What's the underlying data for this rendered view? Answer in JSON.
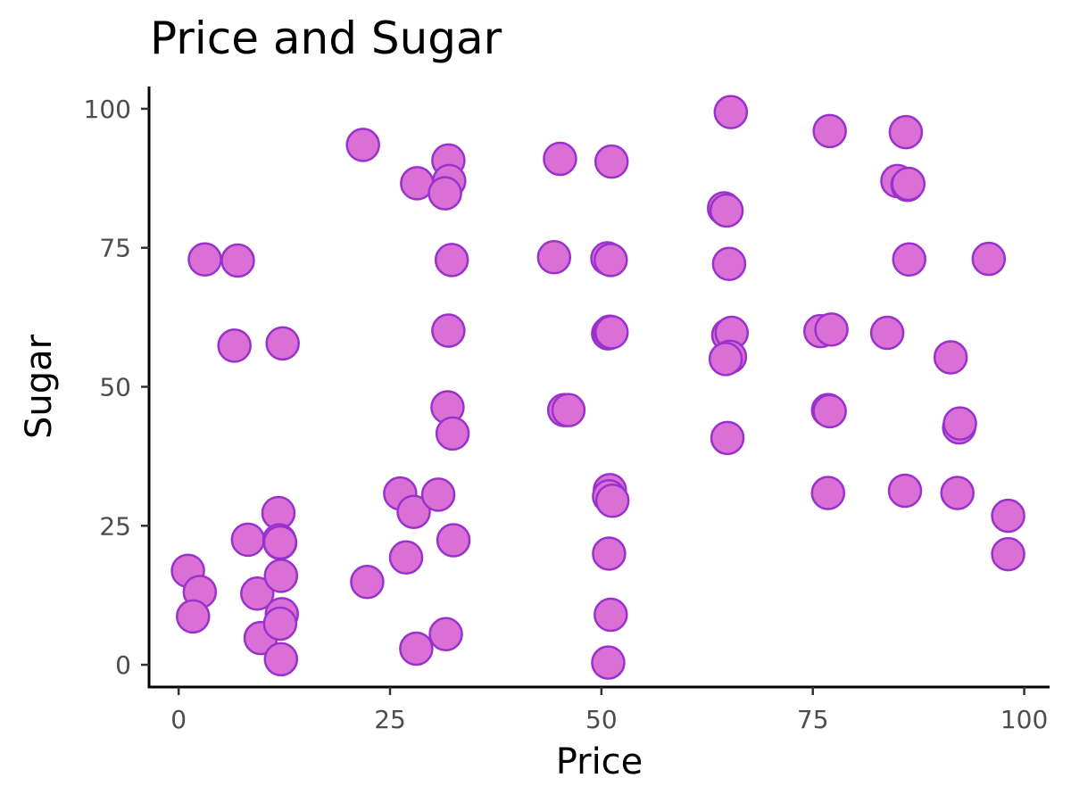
{
  "chart_data": {
    "type": "scatter",
    "title": "Price and Sugar",
    "xlabel": "Price",
    "ylabel": "Sugar",
    "xlim": [
      -3.5,
      103
    ],
    "ylim": [
      -4,
      104
    ],
    "xticks": [
      0,
      25,
      50,
      75,
      100
    ],
    "yticks": [
      0,
      25,
      50,
      75,
      100
    ],
    "xtick_labels": [
      "0",
      "25",
      "50",
      "75",
      "100"
    ],
    "ytick_labels": [
      "0",
      "25",
      "50",
      "75",
      "100"
    ],
    "grid": false,
    "legend": "none",
    "marker_fill": "#da70d6",
    "marker_edge": "#9932cc",
    "x": [
      1.1,
      2.5,
      1.7,
      3.1,
      6.6,
      7.0,
      8.2,
      9.3,
      9.7,
      11.8,
      11.9,
      12.0,
      12.1,
      12.2,
      12.0,
      12.1,
      12.3,
      12.0,
      21.8,
      22.3,
      26.2,
      26.9,
      27.8,
      28.1,
      28.2,
      30.7,
      31.6,
      31.8,
      31.9,
      32.0,
      31.9,
      32.3,
      32.4,
      32.5,
      31.5,
      44.4,
      45.1,
      45.6,
      46.1,
      50.7,
      51.1,
      51.2,
      50.8,
      51.0,
      51.0,
      50.9,
      51.3,
      50.9,
      51.1,
      50.8,
      51.2,
      64.5,
      64.8,
      65.1,
      65.3,
      65.0,
      65.4,
      65.2,
      64.9,
      64.7,
      75.9,
      77.0,
      77.2,
      76.8,
      76.8,
      77.0,
      83.8,
      85.0,
      85.9,
      86.0,
      86.2,
      86.4,
      86.3,
      91.3,
      92.3,
      92.4,
      92.1,
      95.8,
      98.1,
      98.1
    ],
    "y": [
      16.9,
      13.1,
      8.7,
      72.9,
      57.4,
      72.7,
      22.5,
      12.8,
      4.8,
      27.3,
      22.4,
      21.9,
      16.0,
      9.1,
      7.4,
      1.0,
      57.8,
      22.0,
      93.5,
      14.9,
      30.8,
      19.3,
      27.5,
      2.9,
      86.6,
      30.6,
      5.5,
      46.3,
      90.7,
      87.0,
      60.1,
      72.8,
      41.6,
      22.4,
      84.8,
      73.3,
      91.0,
      45.8,
      45.8,
      73.1,
      72.8,
      90.5,
      59.6,
      59.9,
      31.4,
      30.3,
      29.5,
      20.0,
      9.0,
      0.4,
      59.8,
      82.1,
      81.7,
      72.1,
      99.4,
      59.3,
      59.7,
      55.4,
      40.8,
      55.0,
      60.0,
      96.0,
      60.3,
      45.8,
      30.9,
      45.6,
      59.7,
      87.0,
      31.3,
      95.8,
      86.3,
      72.9,
      86.5,
      55.3,
      42.7,
      43.4,
      30.9,
      73.0,
      26.8,
      19.9
    ]
  }
}
